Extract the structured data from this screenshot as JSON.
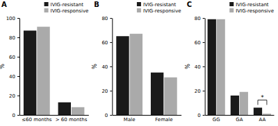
{
  "chart_data": [
    {
      "type": "bar",
      "title": "A",
      "ylabel": "%",
      "categories": [
        "≤60 months",
        "> 60 months"
      ],
      "series": [
        {
          "name": "IVIG-resistant",
          "color": "#1a1a1a",
          "values": [
            87,
            13
          ]
        },
        {
          "name": "IVIG-responsive",
          "color": "#aaaaaa",
          "values": [
            91,
            8
          ]
        }
      ],
      "ylim": [
        0,
        100
      ],
      "yticks": [
        0,
        20,
        40,
        60,
        80,
        100
      ],
      "grid": false,
      "legend": "upper right"
    },
    {
      "type": "bar",
      "title": "B",
      "ylabel": "%",
      "categories": [
        "Male",
        "Female"
      ],
      "series": [
        {
          "name": "IVIG-resistant",
          "color": "#1a1a1a",
          "values": [
            65,
            35
          ]
        },
        {
          "name": "IVIG-responsive",
          "color": "#aaaaaa",
          "values": [
            67,
            31
          ]
        }
      ],
      "ylim": [
        0,
        80
      ],
      "yticks": [
        0,
        20,
        40,
        60,
        80
      ],
      "grid": false,
      "legend": "upper right"
    },
    {
      "type": "bar",
      "title": "C",
      "ylabel": "%",
      "categories": [
        "GG",
        "GA",
        "AA"
      ],
      "series": [
        {
          "name": "IVIG-resistant",
          "color": "#1a1a1a",
          "values": [
            79,
            16,
            6
          ]
        },
        {
          "name": "IVIG-responsive",
          "color": "#aaaaaa",
          "values": [
            79,
            19,
            1
          ]
        }
      ],
      "ylim": [
        0,
        80
      ],
      "yticks": [
        0,
        20,
        40,
        60,
        80
      ],
      "grid": false,
      "legend": "upper right",
      "annotations": [
        {
          "text": "*",
          "category": "AA"
        }
      ]
    }
  ]
}
